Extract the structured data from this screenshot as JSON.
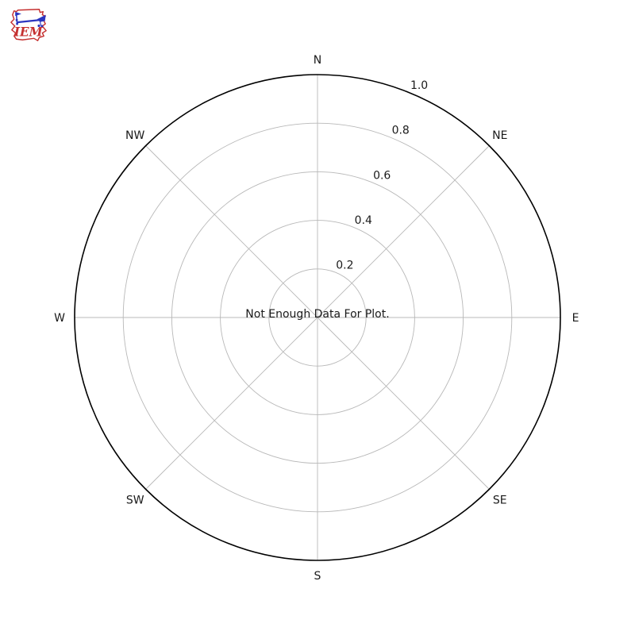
{
  "logo": {
    "text": "IEM",
    "icon": "iowa-state-anemometer",
    "outline_color": "#c53030",
    "glyph_color": "#2b36c0"
  },
  "chart_data": {
    "type": "polar",
    "subtype": "windrose",
    "title": "",
    "message": "Not Enough Data For Plot.",
    "directions": [
      "N",
      "NE",
      "E",
      "SE",
      "S",
      "SW",
      "W",
      "NW"
    ],
    "direction_angles_deg": [
      0,
      45,
      90,
      135,
      180,
      225,
      270,
      315
    ],
    "radial_ticks": [
      0.2,
      0.4,
      0.6,
      0.8,
      1.0
    ],
    "radial_tick_labels": [
      "0.2",
      "0.4",
      "0.6",
      "0.8",
      "1.0"
    ],
    "rlim": [
      0,
      1.0
    ],
    "rlabel_angle_deg": 22.5,
    "grid": true,
    "series": [],
    "colors": {
      "grid": "#b8b8b8",
      "spine": "#000000",
      "text": "#1a1a1a"
    }
  }
}
